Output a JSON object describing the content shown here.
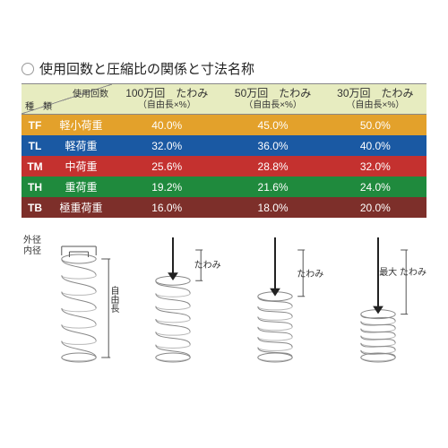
{
  "title": "使用回数と圧縮比の関係と寸法名称",
  "header": {
    "uses_label": "使用回数",
    "kind_label": "種　類",
    "cols": [
      {
        "top": "100万回　たわみ",
        "sub": "（自由長×%）"
      },
      {
        "top": "50万回　たわみ",
        "sub": "（自由長×%）"
      },
      {
        "top": "30万回　たわみ",
        "sub": "（自由長×%）"
      }
    ]
  },
  "rows": [
    {
      "code": "TF",
      "name": "軽小荷重",
      "vals": [
        "40.0%",
        "45.0%",
        "50.0%"
      ],
      "bg": "#e3a12b",
      "text": "#1a2a6c"
    },
    {
      "code": "TL",
      "name": "軽荷重",
      "vals": [
        "32.0%",
        "36.0%",
        "40.0%"
      ],
      "bg": "#1a59a3",
      "text": "#ffffff"
    },
    {
      "code": "TM",
      "name": "中荷重",
      "vals": [
        "25.6%",
        "28.8%",
        "32.0%"
      ],
      "bg": "#c4312f",
      "text": "#ffffff"
    },
    {
      "code": "TH",
      "name": "重荷重",
      "vals": [
        "19.2%",
        "21.6%",
        "24.0%"
      ],
      "bg": "#1f8a3d",
      "text": "#ffffff"
    },
    {
      "code": "TB",
      "name": "極重荷重",
      "vals": [
        "16.0%",
        "18.0%",
        "20.0%"
      ],
      "bg": "#7d2f2a",
      "text": "#ffffff"
    }
  ],
  "diagram": {
    "spring_stroke": "#888888",
    "spring_stroke_width": 1,
    "arrow_color": "#222222",
    "text_color": "#333333",
    "labels": {
      "outer_dia": "外径",
      "inner_dia": "内径",
      "free_len": "自由長",
      "deflect": "たわみ",
      "max_deflect": "最大\nたわみ"
    },
    "compressions": [
      1.0,
      0.78,
      0.62,
      0.44
    ]
  }
}
